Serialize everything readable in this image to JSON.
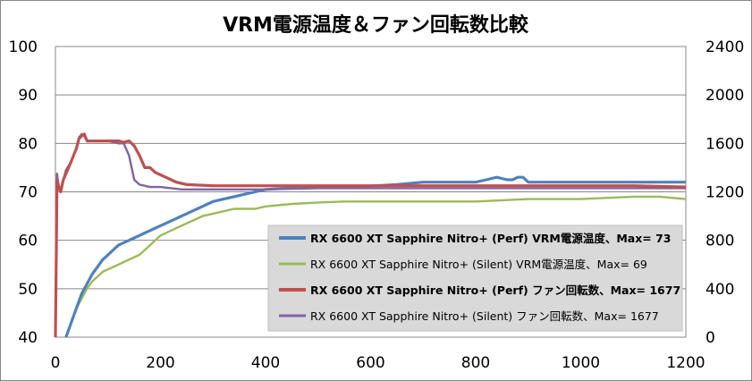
{
  "chart_data": {
    "type": "line",
    "title": "VRM電源温度＆ファン回転数比較",
    "xlim": [
      0,
      1200
    ],
    "x_ticks": [
      "0",
      "200",
      "400",
      "600",
      "800",
      "1000",
      "1200"
    ],
    "ylim_left": [
      40,
      100
    ],
    "y_left_ticks": [
      "40",
      "50",
      "60",
      "70",
      "80",
      "90",
      "100"
    ],
    "ylim_right": [
      0,
      2400
    ],
    "y_right_ticks": [
      "0",
      "400",
      "800",
      "1200",
      "1600",
      "2000",
      "2400"
    ],
    "grid": "horizontal",
    "legend_position": "bottom-right",
    "series": [
      {
        "name": "RX 6600 XT Sapphire Nitro+ (Perf) VRM電源温度、Max= 73",
        "axis": "left",
        "color": "#4F81BD",
        "bold": true,
        "x": [
          20,
          30,
          40,
          50,
          60,
          70,
          80,
          90,
          100,
          110,
          120,
          130,
          140,
          150,
          160,
          170,
          180,
          190,
          200,
          210,
          220,
          230,
          240,
          250,
          260,
          270,
          280,
          290,
          300,
          320,
          340,
          360,
          380,
          400,
          450,
          500,
          550,
          600,
          650,
          700,
          750,
          800,
          820,
          840,
          860,
          870,
          880,
          890,
          900,
          1000,
          1100,
          1200
        ],
        "y": [
          40,
          43,
          46,
          49,
          51,
          53,
          54.5,
          56,
          57,
          58,
          59,
          59.5,
          60,
          60.5,
          61,
          61.5,
          62,
          62.5,
          63,
          63.5,
          64,
          64.5,
          65,
          65.5,
          66,
          66.5,
          67,
          67.5,
          68,
          68.5,
          69,
          69.5,
          70,
          70.5,
          70.8,
          71,
          71,
          71.2,
          71.5,
          72,
          72,
          72,
          72.5,
          73,
          72.5,
          72.5,
          73,
          73,
          72,
          72,
          72,
          72
        ]
      },
      {
        "name": "RX 6600 XT Sapphire Nitro+ (Silent) VRM電源温度、Max= 69",
        "axis": "left",
        "color": "#9BBB59",
        "bold": false,
        "x": [
          20,
          30,
          40,
          50,
          60,
          70,
          80,
          90,
          100,
          110,
          120,
          130,
          140,
          150,
          160,
          170,
          180,
          190,
          200,
          220,
          240,
          260,
          280,
          300,
          320,
          340,
          360,
          380,
          400,
          450,
          500,
          550,
          600,
          650,
          700,
          800,
          900,
          1000,
          1100,
          1150,
          1200
        ],
        "y": [
          40,
          43,
          46,
          48,
          50,
          51.5,
          52.5,
          53.5,
          54,
          54.5,
          55,
          55.5,
          56,
          56.5,
          57,
          58,
          59,
          60,
          61,
          62,
          63,
          64,
          65,
          65.5,
          66,
          66.5,
          66.5,
          66.5,
          67,
          67.5,
          67.8,
          68,
          68,
          68,
          68,
          68,
          68.5,
          68.5,
          69,
          69,
          68.5
        ]
      },
      {
        "name": "RX 6600 XT Sapphire Nitro+ (Perf) ファン回転数、Max= 1677",
        "axis": "right",
        "color": "#C0504D",
        "bold": true,
        "x": [
          0,
          3,
          5,
          10,
          15,
          20,
          30,
          40,
          45,
          50,
          55,
          60,
          80,
          100,
          120,
          130,
          140,
          150,
          160,
          170,
          180,
          190,
          200,
          210,
          220,
          230,
          240,
          250,
          300,
          400,
          500,
          600,
          700,
          800,
          900,
          1000,
          1100,
          1200
        ],
        "y": [
          0,
          1300,
          1250,
          1200,
          1300,
          1350,
          1450,
          1560,
          1640,
          1660,
          1677,
          1620,
          1620,
          1620,
          1620,
          1610,
          1620,
          1580,
          1500,
          1400,
          1400,
          1360,
          1340,
          1320,
          1300,
          1280,
          1270,
          1260,
          1250,
          1250,
          1250,
          1250,
          1250,
          1250,
          1250,
          1250,
          1250,
          1240
        ]
      },
      {
        "name": "RX 6600 XT Sapphire Nitro+ (Silent) ファン回転数、Max= 1677",
        "axis": "right",
        "color": "#8064A2",
        "bold": false,
        "x": [
          0,
          3,
          5,
          10,
          15,
          20,
          30,
          40,
          45,
          50,
          55,
          60,
          80,
          100,
          120,
          130,
          140,
          145,
          150,
          160,
          170,
          180,
          200,
          220,
          240,
          260,
          300,
          400,
          500,
          600,
          700,
          800,
          900,
          1000,
          1100,
          1200
        ],
        "y": [
          0,
          1350,
          1280,
          1200,
          1300,
          1380,
          1450,
          1560,
          1650,
          1677,
          1660,
          1620,
          1620,
          1620,
          1600,
          1600,
          1500,
          1400,
          1300,
          1260,
          1250,
          1240,
          1240,
          1230,
          1220,
          1220,
          1220,
          1220,
          1230,
          1230,
          1230,
          1230,
          1230,
          1230,
          1230,
          1230
        ]
      }
    ]
  }
}
